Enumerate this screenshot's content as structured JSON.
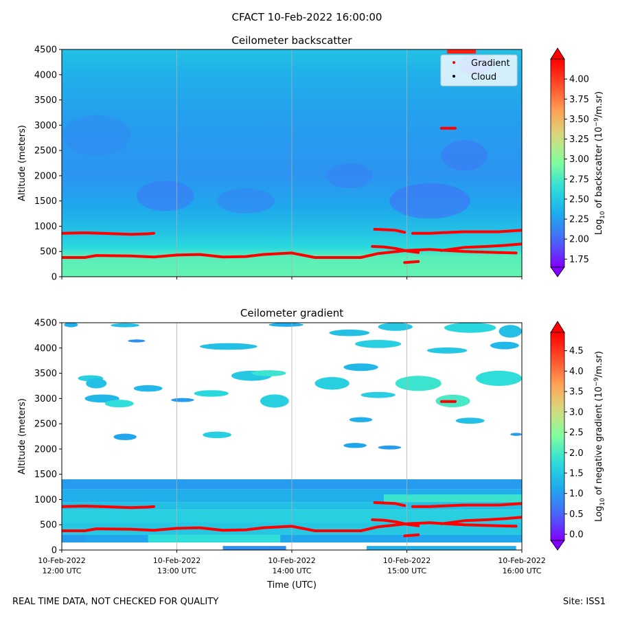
{
  "figure": {
    "suptitle": "CFACT 10-Feb-2022 16:00:00",
    "footer_left": "REAL TIME DATA, NOT CHECKED FOR QUALITY",
    "footer_right": "Site: ISS1"
  },
  "colors": {
    "gradient_marker": "#ff0000",
    "cloud_marker": "#000000",
    "grid": "#b0b0b0",
    "colormap": [
      "#8000ff",
      "#4a65fb",
      "#1ea9ec",
      "#2adcdc",
      "#7ffe9e",
      "#d4dc7f",
      "#ffa256",
      "#ff4c2a",
      "#ff0000"
    ]
  },
  "chart_data": [
    {
      "type": "heatmap",
      "title": "Ceilometer backscatter",
      "xlabel": "",
      "ylabel": "Altitude (meters)",
      "xlim": [
        12,
        16
      ],
      "ylim": [
        0,
        4500
      ],
      "grid": "vertical at x ticks",
      "x_ticks": [
        {
          "value": 12,
          "line1": "10-Feb-2022",
          "line2": "12:00 UTC"
        },
        {
          "value": 13,
          "line1": "10-Feb-2022",
          "line2": "13:00 UTC"
        },
        {
          "value": 14,
          "line1": "10-Feb-2022",
          "line2": "14:00 UTC"
        },
        {
          "value": 15,
          "line1": "10-Feb-2022",
          "line2": "15:00 UTC"
        },
        {
          "value": 16,
          "line1": "10-Feb-2022",
          "line2": "16:00 UTC"
        }
      ],
      "x_tick_labels_shown": false,
      "y_ticks": [
        0,
        500,
        1000,
        1500,
        2000,
        2500,
        3000,
        3500,
        4000,
        4500
      ],
      "colorbar": {
        "label_main": "Log",
        "label_sub": "10",
        "label_rest": " of backscatter (10",
        "label_exp": "−9",
        "label_end": "/m.sr)",
        "min": 1.65,
        "max": 4.25,
        "ticks": [
          "1.75",
          "2.00",
          "2.25",
          "2.50",
          "2.75",
          "3.00",
          "3.25",
          "3.50",
          "3.75",
          "4.00"
        ],
        "extend": "both"
      },
      "legend": {
        "position": "upper right",
        "entries": [
          {
            "label": "Gradient",
            "color": "#ff0000"
          },
          {
            "label": "Cloud",
            "color": "#000000"
          }
        ]
      },
      "field": {
        "surface_layer_value": 2.85,
        "mid_layer_value": 2.35,
        "upper_value": 2.2,
        "top_value": 2.45
      },
      "series": [
        {
          "name": "Gradient",
          "segments": [
            [
              [
                12.0,
                380
              ],
              [
                12.2,
                380
              ],
              [
                12.3,
                420
              ],
              [
                12.6,
                410
              ],
              [
                12.8,
                390
              ],
              [
                13.0,
                430
              ],
              [
                13.2,
                440
              ],
              [
                13.4,
                390
              ],
              [
                13.6,
                400
              ],
              [
                13.75,
                440
              ],
              [
                13.9,
                460
              ],
              [
                14.0,
                470
              ],
              [
                14.2,
                380
              ],
              [
                14.4,
                380
              ],
              [
                14.6,
                380
              ],
              [
                14.75,
                460
              ],
              [
                15.0,
                520
              ],
              [
                15.2,
                540
              ],
              [
                15.5,
                500
              ],
              [
                15.8,
                480
              ],
              [
                15.95,
                470
              ]
            ],
            [
              [
                12.0,
                860
              ],
              [
                12.2,
                870
              ],
              [
                12.35,
                860
              ],
              [
                12.6,
                840
              ],
              [
                12.75,
                850
              ],
              [
                12.8,
                860
              ]
            ],
            [
              [
                14.7,
                600
              ],
              [
                14.8,
                590
              ],
              [
                14.9,
                560
              ],
              [
                15.0,
                510
              ],
              [
                15.1,
                480
              ]
            ],
            [
              [
                14.72,
                940
              ],
              [
                14.82,
                930
              ],
              [
                14.9,
                920
              ],
              [
                14.98,
                880
              ]
            ],
            [
              [
                14.98,
                280
              ],
              [
                15.1,
                300
              ]
            ],
            [
              [
                15.3,
                2940
              ],
              [
                15.42,
                2940
              ]
            ],
            [
              [
                15.05,
                860
              ],
              [
                15.2,
                860
              ],
              [
                15.5,
                890
              ],
              [
                15.8,
                890
              ],
              [
                16.0,
                920
              ]
            ],
            [
              [
                15.3,
                520
              ],
              [
                15.5,
                580
              ],
              [
                15.7,
                600
              ],
              [
                15.85,
                620
              ],
              [
                16.0,
                650
              ]
            ]
          ]
        }
      ]
    },
    {
      "type": "heatmap",
      "title": "Ceilometer gradient",
      "xlabel": "Time (UTC)",
      "ylabel": "Altitude (meters)",
      "xlim": [
        12,
        16
      ],
      "ylim": [
        0,
        4500
      ],
      "grid": "vertical at x ticks",
      "x_ticks": [
        {
          "value": 12,
          "line1": "10-Feb-2022",
          "line2": "12:00 UTC"
        },
        {
          "value": 13,
          "line1": "10-Feb-2022",
          "line2": "13:00 UTC"
        },
        {
          "value": 14,
          "line1": "10-Feb-2022",
          "line2": "14:00 UTC"
        },
        {
          "value": 15,
          "line1": "10-Feb-2022",
          "line2": "15:00 UTC"
        },
        {
          "value": 16,
          "line1": "10-Feb-2022",
          "line2": "16:00 UTC"
        }
      ],
      "x_tick_labels_shown": true,
      "y_ticks": [
        0,
        500,
        1000,
        1500,
        2000,
        2500,
        3000,
        3500,
        4000,
        4500
      ],
      "colorbar": {
        "label_main": "Log",
        "label_sub": "10",
        "label_rest": " of negative gradient (10",
        "label_exp": "−9",
        "label_end": "/m.sr)",
        "min": -0.15,
        "max": 4.95,
        "ticks": [
          "0.0",
          "0.5",
          "1.0",
          "1.5",
          "2.0",
          "2.5",
          "3.0",
          "3.5",
          "4.0",
          "4.5"
        ],
        "extend": "both"
      },
      "blobs": [
        {
          "x": 12.08,
          "y": 4460,
          "w": 0.12,
          "h": 100,
          "v": 1.2
        },
        {
          "x": 12.25,
          "y": 3400,
          "w": 0.22,
          "h": 120,
          "v": 1.6
        },
        {
          "x": 12.3,
          "y": 3300,
          "w": 0.18,
          "h": 200,
          "v": 1.4
        },
        {
          "x": 12.35,
          "y": 3000,
          "w": 0.3,
          "h": 160,
          "v": 1.3
        },
        {
          "x": 12.5,
          "y": 2900,
          "w": 0.25,
          "h": 150,
          "v": 1.8
        },
        {
          "x": 12.55,
          "y": 2240,
          "w": 0.2,
          "h": 130,
          "v": 1.1
        },
        {
          "x": 12.75,
          "y": 3200,
          "w": 0.25,
          "h": 130,
          "v": 1.3
        },
        {
          "x": 12.65,
          "y": 4140,
          "w": 0.15,
          "h": 60,
          "v": 0.9
        },
        {
          "x": 12.55,
          "y": 4450,
          "w": 0.25,
          "h": 80,
          "v": 1.4
        },
        {
          "x": 13.05,
          "y": 2970,
          "w": 0.2,
          "h": 80,
          "v": 1.0
        },
        {
          "x": 13.35,
          "y": 2280,
          "w": 0.25,
          "h": 130,
          "v": 1.6
        },
        {
          "x": 13.3,
          "y": 3100,
          "w": 0.3,
          "h": 130,
          "v": 1.7
        },
        {
          "x": 13.45,
          "y": 4030,
          "w": 0.5,
          "h": 130,
          "v": 1.4
        },
        {
          "x": 13.65,
          "y": 3450,
          "w": 0.35,
          "h": 200,
          "v": 1.5
        },
        {
          "x": 13.8,
          "y": 3500,
          "w": 0.3,
          "h": 120,
          "v": 1.9
        },
        {
          "x": 13.85,
          "y": 2950,
          "w": 0.25,
          "h": 260,
          "v": 1.6
        },
        {
          "x": 13.95,
          "y": 4460,
          "w": 0.3,
          "h": 80,
          "v": 1.2
        },
        {
          "x": 14.35,
          "y": 3300,
          "w": 0.3,
          "h": 250,
          "v": 1.6
        },
        {
          "x": 14.5,
          "y": 4300,
          "w": 0.35,
          "h": 130,
          "v": 1.4
        },
        {
          "x": 14.6,
          "y": 3620,
          "w": 0.3,
          "h": 150,
          "v": 1.3
        },
        {
          "x": 14.6,
          "y": 2580,
          "w": 0.2,
          "h": 100,
          "v": 1.2
        },
        {
          "x": 14.55,
          "y": 2070,
          "w": 0.2,
          "h": 100,
          "v": 1.1
        },
        {
          "x": 14.75,
          "y": 4080,
          "w": 0.4,
          "h": 160,
          "v": 1.6
        },
        {
          "x": 14.75,
          "y": 3070,
          "w": 0.3,
          "h": 120,
          "v": 1.6
        },
        {
          "x": 14.9,
          "y": 4420,
          "w": 0.3,
          "h": 160,
          "v": 1.5
        },
        {
          "x": 14.85,
          "y": 2030,
          "w": 0.2,
          "h": 80,
          "v": 1.0
        },
        {
          "x": 15.1,
          "y": 3300,
          "w": 0.4,
          "h": 300,
          "v": 1.9
        },
        {
          "x": 15.35,
          "y": 3950,
          "w": 0.35,
          "h": 120,
          "v": 1.5
        },
        {
          "x": 15.4,
          "y": 2950,
          "w": 0.3,
          "h": 250,
          "v": 2.0
        },
        {
          "x": 15.55,
          "y": 4400,
          "w": 0.45,
          "h": 200,
          "v": 1.7
        },
        {
          "x": 15.55,
          "y": 2560,
          "w": 0.25,
          "h": 120,
          "v": 1.4
        },
        {
          "x": 15.8,
          "y": 3400,
          "w": 0.4,
          "h": 300,
          "v": 1.8
        },
        {
          "x": 15.85,
          "y": 4050,
          "w": 0.25,
          "h": 150,
          "v": 1.3
        },
        {
          "x": 15.9,
          "y": 4330,
          "w": 0.2,
          "h": 250,
          "v": 1.4
        },
        {
          "x": 15.95,
          "y": 2290,
          "w": 0.1,
          "h": 60,
          "v": 1.0
        }
      ],
      "bands": [
        {
          "y0": 1200,
          "y1": 1400,
          "v": 1.0
        },
        {
          "y0": 950,
          "y1": 1200,
          "v": 1.2
        },
        {
          "x0": 14.8,
          "x1": 16.0,
          "y0": 950,
          "y1": 1100,
          "v": 1.9
        },
        {
          "y0": 800,
          "y1": 950,
          "v": 1.4
        },
        {
          "y0": 550,
          "y1": 800,
          "v": 1.6
        },
        {
          "y0": 300,
          "y1": 550,
          "v": 1.5
        },
        {
          "y0": 150,
          "y1": 300,
          "v": 1.1
        },
        {
          "x0": 12.75,
          "x1": 13.9,
          "y0": 150,
          "y1": 300,
          "v": 1.8
        },
        {
          "x0": 12.0,
          "x1": 12.2,
          "y0": 150,
          "y1": 300,
          "v": 1.0
        },
        {
          "x0": 13.4,
          "x1": 13.95,
          "y0": 0,
          "y1": 80,
          "v": 0.9
        },
        {
          "x0": 14.65,
          "x1": 15.95,
          "y0": 0,
          "y1": 80,
          "v": 1.2
        }
      ],
      "series": [
        {
          "name": "Gradient",
          "segments": "same as panel 1"
        }
      ]
    }
  ]
}
